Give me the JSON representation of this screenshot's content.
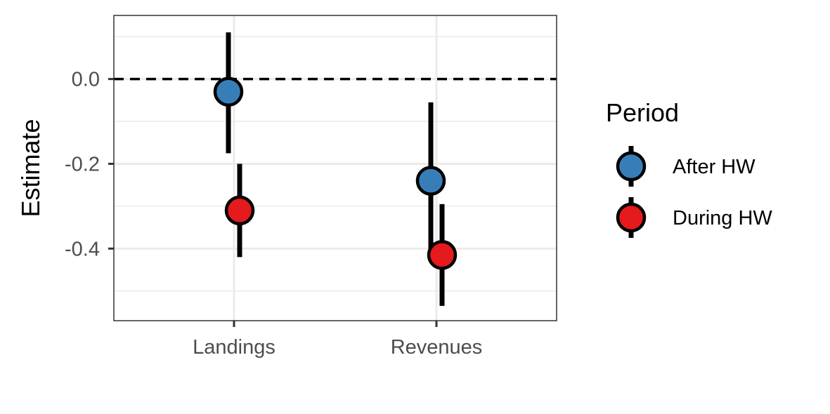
{
  "chart_data": {
    "type": "scatter",
    "ylabel": "Estimate",
    "xlabel": "",
    "categories": [
      "Landings",
      "Revenues"
    ],
    "ylim": [
      -0.57,
      0.15
    ],
    "yticks": [
      {
        "value": 0.0,
        "label": "0.0"
      },
      {
        "value": -0.2,
        "label": "-0.2"
      },
      {
        "value": -0.4,
        "label": "-0.4"
      }
    ],
    "reference_line": {
      "y": 0,
      "style": "dashed"
    },
    "grid": true,
    "legend": {
      "title": "Period",
      "position": "right"
    },
    "series": [
      {
        "name": "After HW",
        "color": "#377eb8",
        "points": [
          {
            "category": "Landings",
            "estimate": -0.03,
            "lower": -0.175,
            "upper": 0.11
          },
          {
            "category": "Revenues",
            "estimate": -0.24,
            "lower": -0.43,
            "upper": -0.055
          }
        ]
      },
      {
        "name": "During HW",
        "color": "#e41a1c",
        "points": [
          {
            "category": "Landings",
            "estimate": -0.31,
            "lower": -0.42,
            "upper": -0.2
          },
          {
            "category": "Revenues",
            "estimate": -0.415,
            "lower": -0.535,
            "upper": -0.295
          }
        ]
      }
    ]
  }
}
